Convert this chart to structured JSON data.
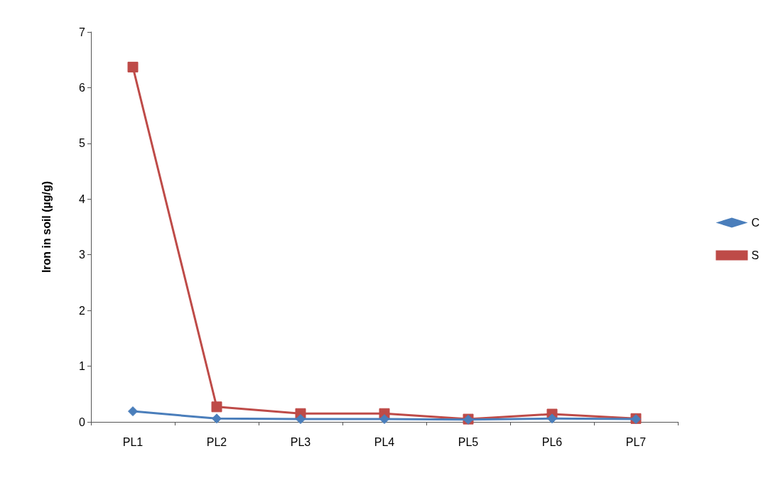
{
  "chart_data": {
    "type": "line",
    "ylabel": "Iron in soil (µg/g)",
    "categories": [
      "PL1",
      "PL2",
      "PL3",
      "PL4",
      "PL5",
      "PL6",
      "PL7"
    ],
    "series": [
      {
        "name": "C",
        "color": "#4a7ebb",
        "marker": "diamond",
        "values": [
          0.19,
          0.06,
          0.05,
          0.05,
          0.04,
          0.06,
          0.05
        ]
      },
      {
        "name": "S",
        "color": "#be4b48",
        "marker": "square",
        "values": [
          6.37,
          0.27,
          0.15,
          0.15,
          0.05,
          0.14,
          0.06
        ]
      }
    ],
    "ylim": [
      0,
      7
    ],
    "yticks": [
      0,
      1,
      2,
      3,
      4,
      5,
      6,
      7
    ],
    "grid": false,
    "legend": "right"
  }
}
